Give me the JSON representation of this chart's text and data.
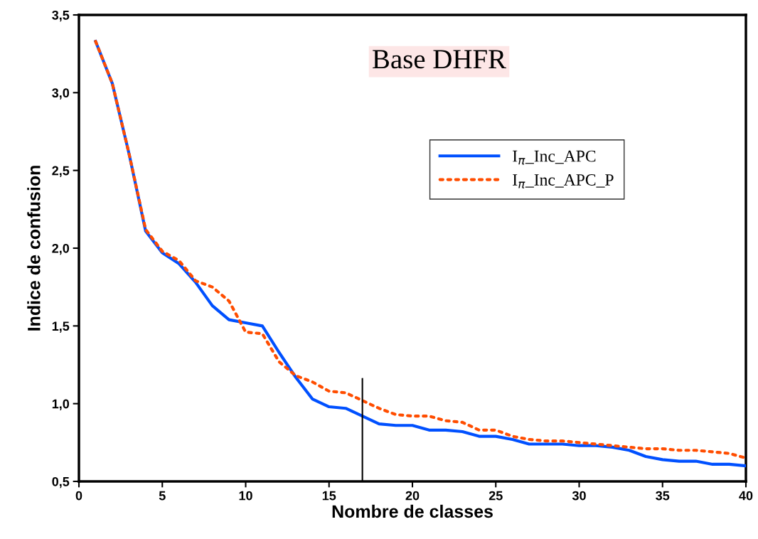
{
  "chart_data": {
    "type": "line",
    "title": "Base DHFR",
    "xlabel": "Nombre de classes",
    "ylabel": "Indice de confusion",
    "x": [
      1,
      2,
      3,
      4,
      5,
      6,
      7,
      8,
      9,
      10,
      11,
      12,
      13,
      14,
      15,
      16,
      17,
      18,
      19,
      20,
      21,
      22,
      23,
      24,
      25,
      26,
      27,
      28,
      29,
      30,
      31,
      32,
      33,
      34,
      35,
      36,
      37,
      38,
      39,
      40
    ],
    "series": [
      {
        "name": "I$_{π}$_Inc_APC",
        "color": "#0050ff",
        "line_style": "solid",
        "values": [
          3.33,
          3.06,
          2.61,
          2.11,
          1.97,
          1.9,
          1.78,
          1.63,
          1.54,
          1.52,
          1.5,
          1.33,
          1.17,
          1.03,
          0.98,
          0.97,
          0.92,
          0.87,
          0.86,
          0.86,
          0.83,
          0.83,
          0.82,
          0.79,
          0.79,
          0.77,
          0.74,
          0.74,
          0.74,
          0.73,
          0.73,
          0.72,
          0.7,
          0.66,
          0.64,
          0.63,
          0.63,
          0.61,
          0.61,
          0.6
        ]
      },
      {
        "name": "I$_{π}$_Inc_APC_P",
        "color": "#ff4d00",
        "line_style": "dotted",
        "values": [
          3.33,
          3.06,
          2.61,
          2.12,
          1.98,
          1.92,
          1.79,
          1.75,
          1.66,
          1.46,
          1.45,
          1.27,
          1.18,
          1.14,
          1.08,
          1.07,
          1.02,
          0.97,
          0.93,
          0.92,
          0.92,
          0.89,
          0.88,
          0.83,
          0.83,
          0.79,
          0.77,
          0.76,
          0.76,
          0.75,
          0.74,
          0.73,
          0.72,
          0.71,
          0.71,
          0.7,
          0.7,
          0.69,
          0.68,
          0.65
        ]
      },
      {
        "color": "#000000",
        "line_style": "solid",
        "x": [
          17,
          17
        ],
        "values": [
          0.5,
          1.16
        ]
      }
    ],
    "xlim": [
      0,
      40
    ],
    "xticks": [
      0,
      5,
      10,
      15,
      20,
      25,
      30,
      35,
      40
    ],
    "ylim": [
      0.5,
      3.5
    ],
    "yticks": [
      {
        "value": 0.5,
        "label": "0,5"
      },
      {
        "value": 1.0,
        "label": "1,0"
      },
      {
        "value": 1.5,
        "label": "1,5"
      },
      {
        "value": 2.0,
        "label": "2,0"
      },
      {
        "value": 2.5,
        "label": "2,5"
      },
      {
        "value": 3.0,
        "label": "3,0"
      },
      {
        "value": 3.5,
        "label": "3,5"
      }
    ],
    "grid": false,
    "legend": "top right",
    "marker": "none"
  }
}
